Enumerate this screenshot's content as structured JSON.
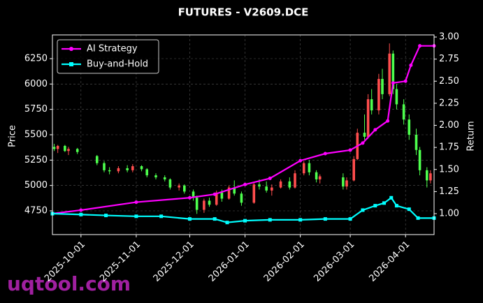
{
  "chart_data": {
    "type": "candlestick",
    "title": "FUTURES - V2609.DCE",
    "ylabel": "Price",
    "y2label": "Return",
    "watermark": "uqtool.com",
    "grid": true,
    "legend": "upper left",
    "up_color": "#ff4d4d",
    "down_color": "#4dff4d",
    "xlim": [
      "2025-09-15",
      "2026-04-17"
    ],
    "xticks": [
      "2025-10-01",
      "2025-11-01",
      "2025-12-01",
      "2026-01-01",
      "2026-02-01",
      "2026-03-01",
      "2026-04-01"
    ],
    "ylim": [
      4516,
      6484
    ],
    "yticks": [
      4750,
      5000,
      5250,
      5500,
      5750,
      6000,
      6250
    ],
    "y2lim": [
      0.763,
      3.024
    ],
    "y2ticks": [
      {
        "value": 1,
        "label": "1.00"
      },
      {
        "value": 1.25,
        "label": "1.25"
      },
      {
        "value": 1.5,
        "label": "1.50"
      },
      {
        "value": 1.75,
        "label": "1.75"
      },
      {
        "value": 2,
        "label": "2.00"
      },
      {
        "value": 2.25,
        "label": "2.25"
      },
      {
        "value": 2.5,
        "label": "2.50"
      },
      {
        "value": 2.75,
        "label": "2.75"
      },
      {
        "value": 3,
        "label": "3.00"
      }
    ],
    "x": [
      "2025-09-16",
      "2025-09-18",
      "2025-09-22",
      "2025-09-24",
      "2025-09-29",
      "2025-10-10",
      "2025-10-14",
      "2025-10-17",
      "2025-10-22",
      "2025-10-27",
      "2025-10-30",
      "2025-11-04",
      "2025-11-07",
      "2025-11-12",
      "2025-11-17",
      "2025-11-20",
      "2025-11-25",
      "2025-11-28",
      "2025-12-03",
      "2025-12-05",
      "2025-12-09",
      "2025-12-12",
      "2025-12-16",
      "2025-12-19",
      "2025-12-23",
      "2025-12-26",
      "2025-12-30",
      "2026-01-06",
      "2026-01-09",
      "2026-01-13",
      "2026-01-16",
      "2026-01-21",
      "2026-01-26",
      "2026-01-29",
      "2026-02-03",
      "2026-02-06",
      "2026-02-10",
      "2026-02-12",
      "2026-02-25",
      "2026-02-27",
      "2026-03-03",
      "2026-03-05",
      "2026-03-09",
      "2026-03-11",
      "2026-03-13",
      "2026-03-17",
      "2026-03-19",
      "2026-03-23",
      "2026-03-25",
      "2026-03-27",
      "2026-03-31",
      "2026-04-03",
      "2026-04-07",
      "2026-04-09",
      "2026-04-13",
      "2026-04-15"
    ],
    "open": [
      5380,
      5360,
      5390,
      5340,
      5360,
      5290,
      5220,
      5150,
      5140,
      5170,
      5150,
      5190,
      5160,
      5100,
      5080,
      5060,
      4980,
      5000,
      4940,
      4880,
      4760,
      4850,
      4810,
      4930,
      4870,
      4980,
      4920,
      4830,
      5010,
      4990,
      4950,
      4980,
      5040,
      4980,
      5120,
      5220,
      5130,
      5060,
      5080,
      4990,
      5050,
      5260,
      5520,
      5480,
      5850,
      5740,
      6050,
      5900,
      6300,
      5950,
      5800,
      5650,
      5500,
      5350,
      5150,
      5050
    ],
    "high": [
      5410,
      5400,
      5400,
      5380,
      5370,
      5300,
      5240,
      5180,
      5190,
      5200,
      5210,
      5200,
      5170,
      5120,
      5100,
      5070,
      5020,
      5010,
      4960,
      4900,
      4870,
      4880,
      4950,
      4960,
      5000,
      5050,
      4940,
      5030,
      5060,
      5040,
      5010,
      5060,
      5080,
      5150,
      5240,
      5250,
      5150,
      5110,
      5120,
      5080,
      5290,
      5560,
      5700,
      5900,
      5950,
      6100,
      6150,
      6400,
      6330,
      6000,
      5850,
      5700,
      5560,
      5380,
      5180,
      5150
    ],
    "low": [
      5340,
      5320,
      5330,
      5300,
      5310,
      5200,
      5130,
      5110,
      5120,
      5130,
      5130,
      5140,
      5080,
      5060,
      5040,
      4960,
      4950,
      4920,
      4850,
      4720,
      4730,
      4790,
      4800,
      4840,
      4860,
      4900,
      4800,
      4820,
      4960,
      4930,
      4900,
      4970,
      4960,
      4970,
      5100,
      5100,
      5030,
      5020,
      4960,
      4960,
      5040,
      5250,
      5450,
      5460,
      5700,
      5700,
      5850,
      5880,
      5900,
      5750,
      5600,
      5450,
      5300,
      5100,
      4980,
      5020
    ],
    "close": [
      5360,
      5390,
      5340,
      5360,
      5330,
      5220,
      5150,
      5140,
      5170,
      5150,
      5190,
      5160,
      5100,
      5080,
      5060,
      4980,
      5000,
      4940,
      4880,
      4760,
      4850,
      4810,
      4930,
      4870,
      4980,
      4920,
      4830,
      5010,
      4990,
      4950,
      4980,
      5040,
      4980,
      5120,
      5220,
      5130,
      5060,
      5090,
      4990,
      5050,
      5260,
      5520,
      5480,
      5850,
      5740,
      6050,
      5900,
      6300,
      5950,
      5800,
      5650,
      5500,
      5350,
      5150,
      5050,
      5120
    ],
    "series": [
      {
        "name": "AI Strategy",
        "color": "#ff00ff",
        "axis": "y2",
        "marker": "circle",
        "x": [
          "2025-09-15",
          "2025-10-01",
          "2025-11-01",
          "2025-12-01",
          "2025-12-15",
          "2026-01-01",
          "2026-01-15",
          "2026-02-01",
          "2026-02-15",
          "2026-03-01",
          "2026-03-08",
          "2026-03-15",
          "2026-03-22",
          "2026-03-25",
          "2026-04-01",
          "2026-04-04",
          "2026-04-09",
          "2026-04-17"
        ],
        "values": [
          1.0,
          1.04,
          1.13,
          1.18,
          1.22,
          1.33,
          1.4,
          1.6,
          1.68,
          1.72,
          1.8,
          1.95,
          2.05,
          2.48,
          2.5,
          2.68,
          2.9,
          2.9
        ]
      },
      {
        "name": "Buy-and-Hold",
        "color": "#00ffff",
        "axis": "y2",
        "marker": "square",
        "x": [
          "2025-09-15",
          "2025-10-01",
          "2025-10-15",
          "2025-11-01",
          "2025-11-15",
          "2025-12-01",
          "2025-12-15",
          "2025-12-22",
          "2026-01-01",
          "2026-01-15",
          "2026-02-01",
          "2026-02-15",
          "2026-03-01",
          "2026-03-08",
          "2026-03-15",
          "2026-03-20",
          "2026-03-24",
          "2026-03-27",
          "2026-04-03",
          "2026-04-08",
          "2026-04-17"
        ],
        "values": [
          1.0,
          0.99,
          0.98,
          0.97,
          0.97,
          0.94,
          0.94,
          0.9,
          0.92,
          0.93,
          0.93,
          0.94,
          0.94,
          1.04,
          1.09,
          1.12,
          1.18,
          1.09,
          1.05,
          0.95,
          0.95
        ]
      }
    ]
  }
}
